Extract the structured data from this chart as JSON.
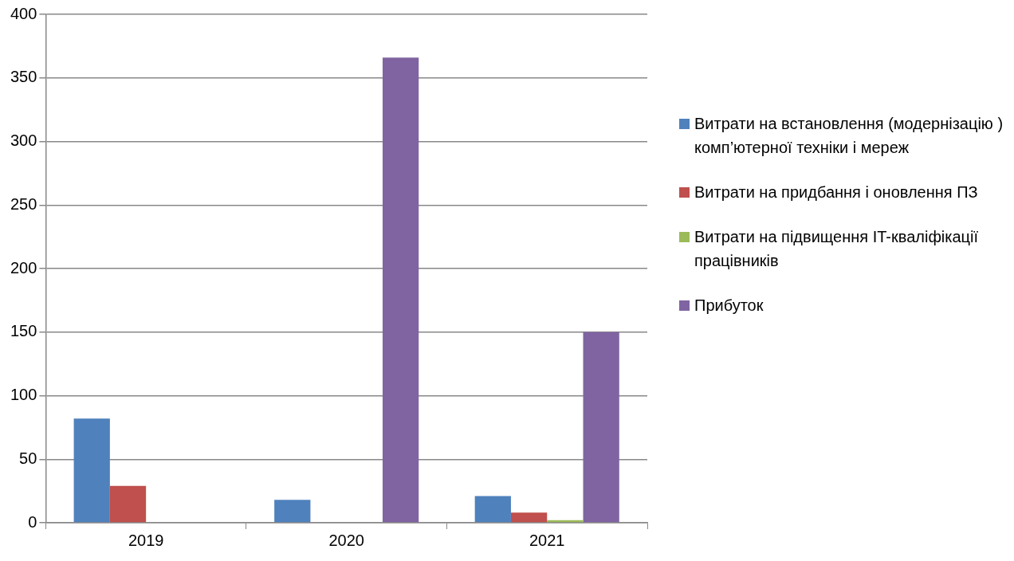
{
  "chart_data": {
    "type": "bar",
    "categories": [
      "2019",
      "2020",
      "2021"
    ],
    "series": [
      {
        "name": "Витрати на встановлення (модернізацію ) комп’ютерної техніки і мереж",
        "color": "#4f81bd",
        "values": [
          82,
          18,
          21
        ]
      },
      {
        "name": "Витрати на придбання і оновлення ПЗ",
        "color": "#c0504d",
        "values": [
          29,
          0,
          8
        ]
      },
      {
        "name": "Витрати на підвищення IT-кваліфікації працівників",
        "color": "#9bbb59",
        "values": [
          0,
          0,
          2
        ]
      },
      {
        "name": "Прибуток",
        "color": "#8064a2",
        "values": [
          0,
          366,
          150
        ]
      }
    ],
    "ylim": [
      0,
      400
    ],
    "yticks": [
      0,
      50,
      100,
      150,
      200,
      250,
      300,
      350,
      400
    ],
    "grid": "y",
    "legend": "right"
  }
}
